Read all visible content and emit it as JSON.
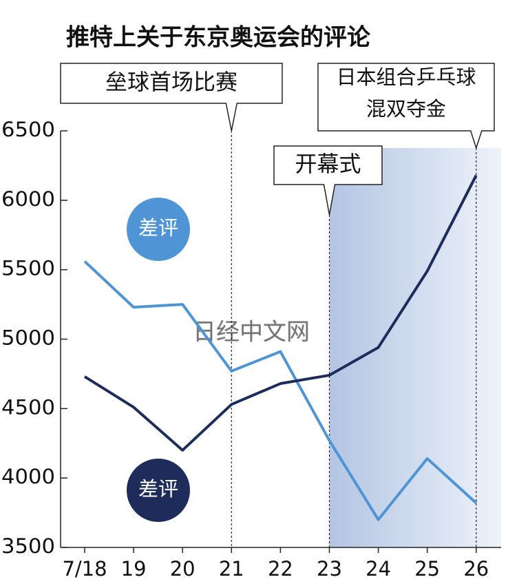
{
  "chart_data": {
    "type": "line",
    "title": "推特上关于东京奥运会的评论",
    "categories": [
      "7/18",
      "19",
      "20",
      "21",
      "22",
      "23",
      "24",
      "25",
      "26"
    ],
    "series": [
      {
        "name": "差评",
        "color": "#4f94d4",
        "values": [
          5560,
          5230,
          5250,
          4770,
          4910,
          4270,
          3700,
          4140,
          3820
        ]
      },
      {
        "name": "差评",
        "color": "#1e2c5c",
        "values": [
          4730,
          4510,
          4200,
          4530,
          4680,
          4740,
          4940,
          5490,
          6180
        ]
      }
    ],
    "ylim": [
      3500,
      6500
    ],
    "yticks": [
      3500,
      4000,
      4500,
      5000,
      5500,
      6000,
      6500
    ],
    "annotations": [
      [
        "垒球首场比赛"
      ],
      [
        "日本组合乒乓球",
        "混双夺金"
      ],
      [
        "开幕式"
      ]
    ],
    "watermark": "日经中文网"
  }
}
